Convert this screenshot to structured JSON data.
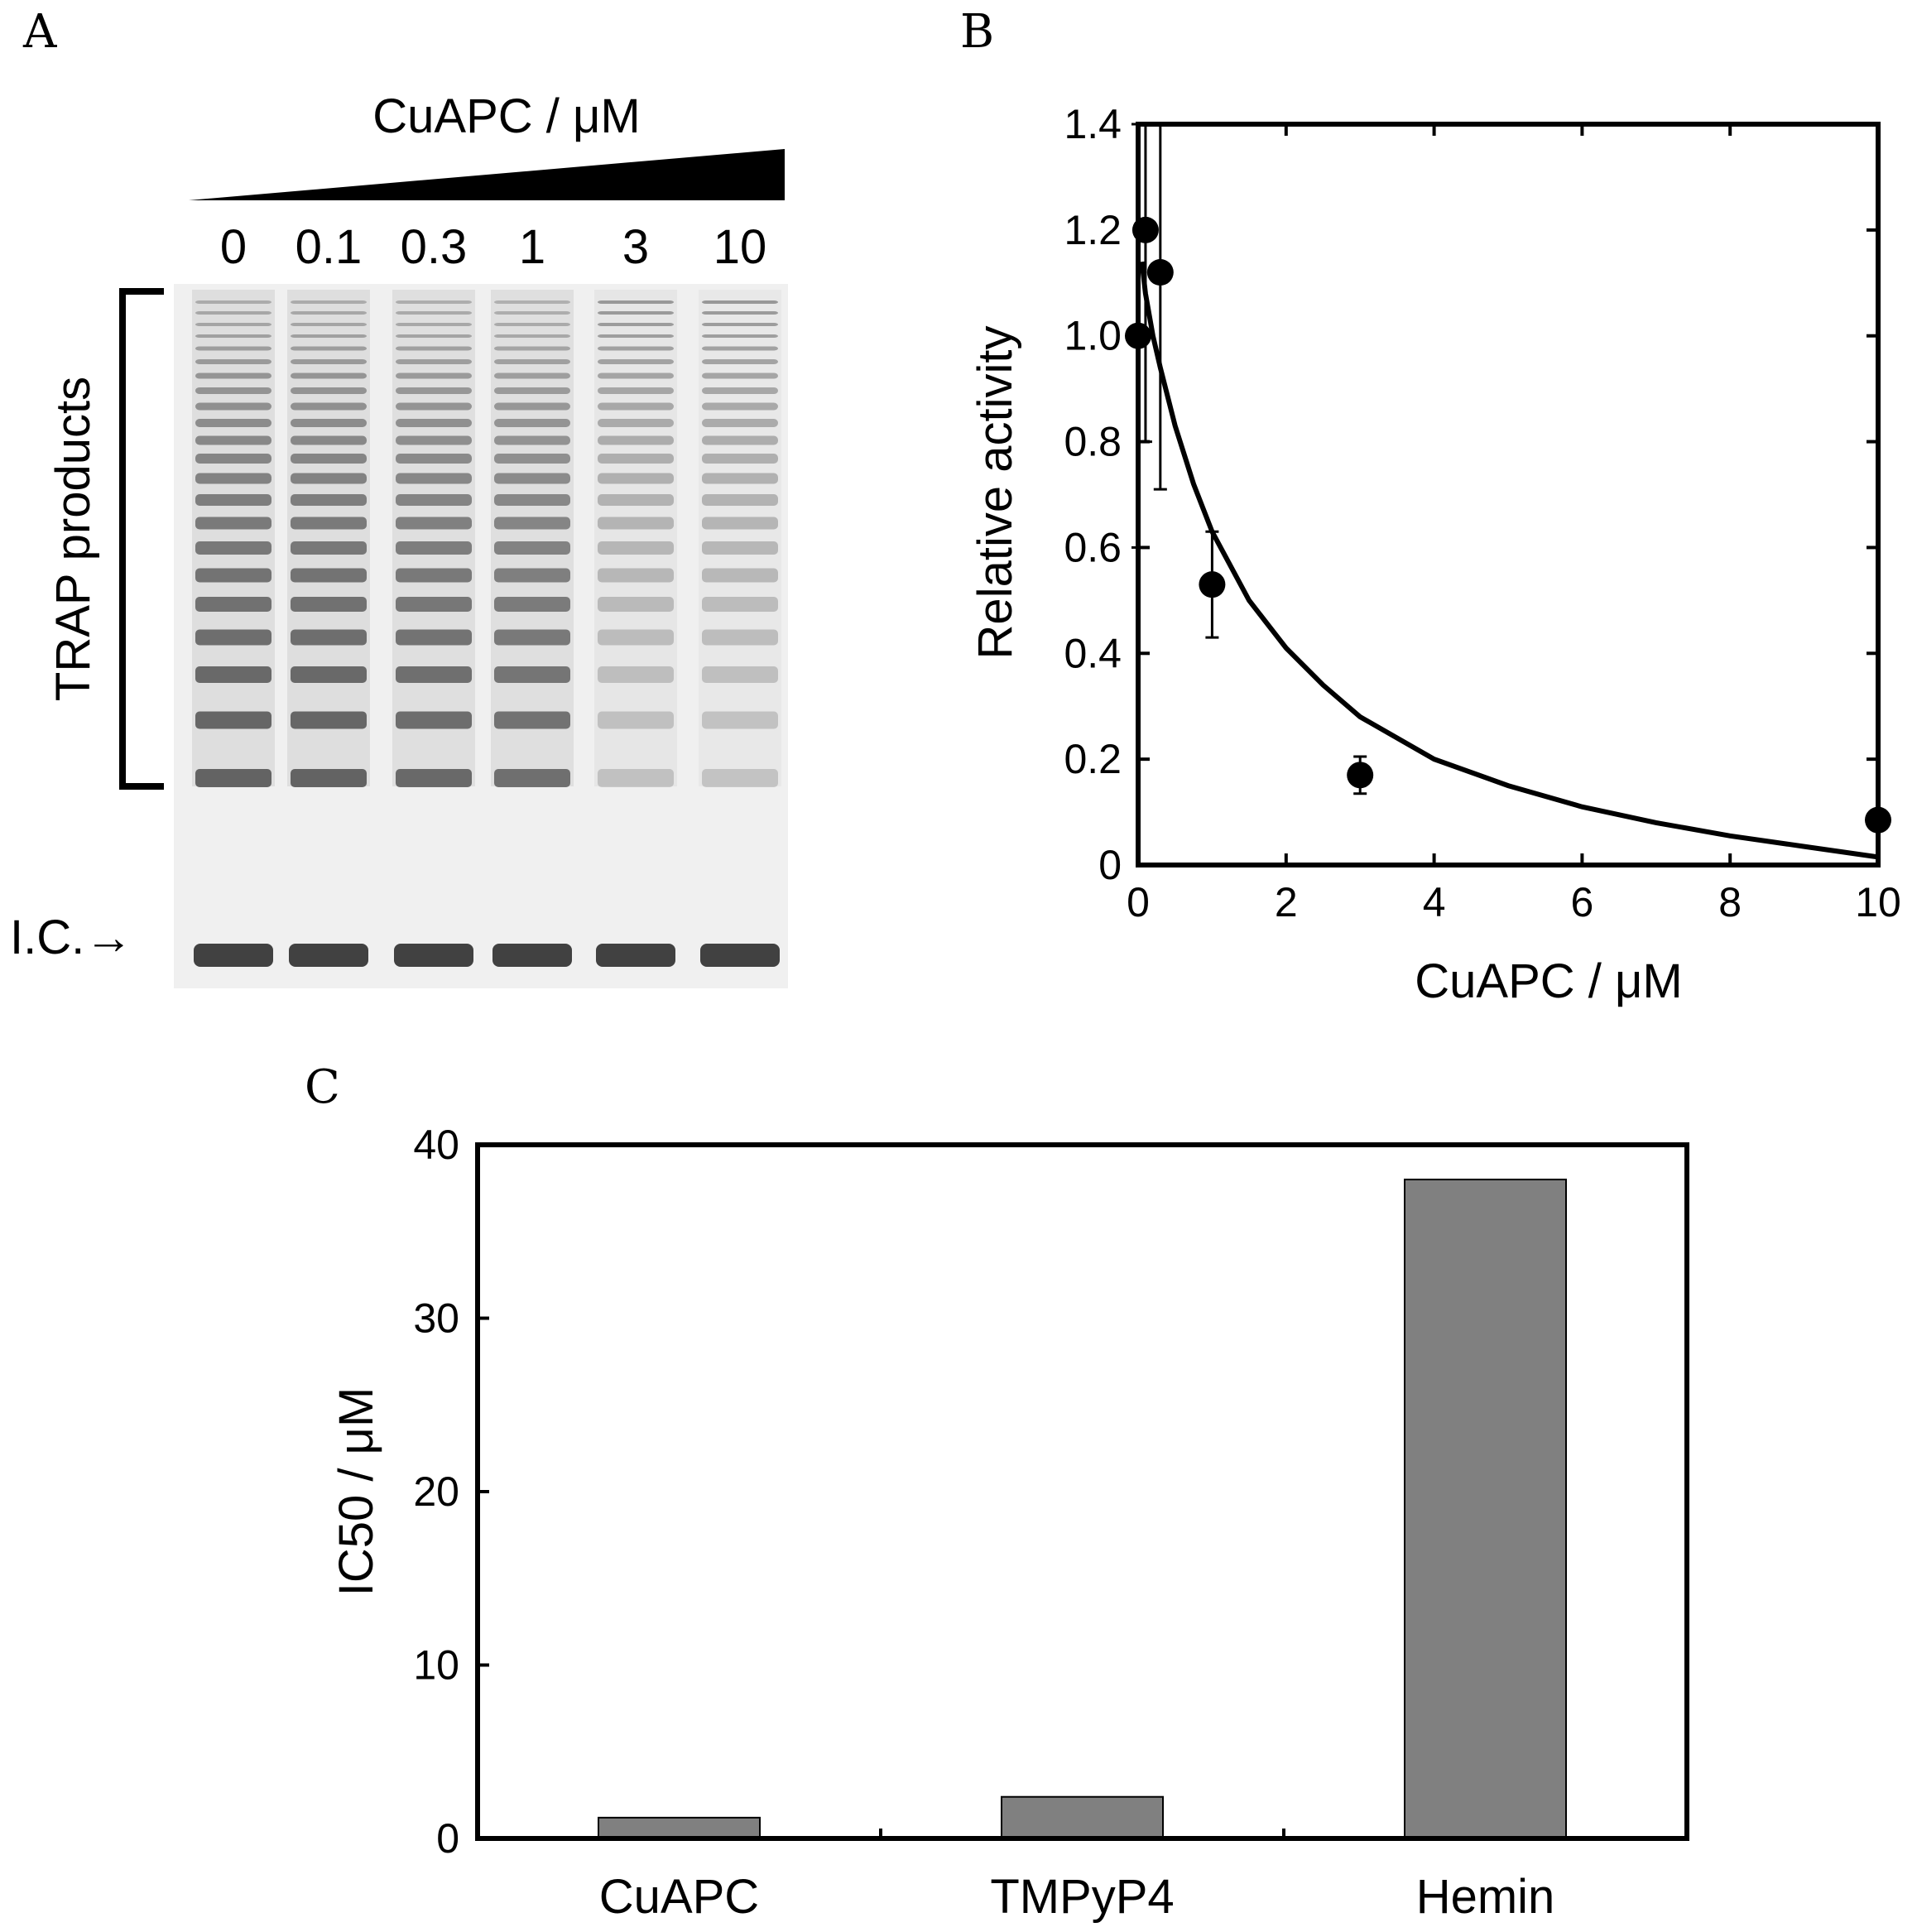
{
  "panels": {
    "a": {
      "letter": "A",
      "gradient_label": "CuAPC / μM",
      "lanes": [
        "0",
        "0.1",
        "0.3",
        "1",
        "3",
        "10"
      ],
      "bracket_label": "TRAP products",
      "ic_label": "I.C.→"
    },
    "b": {
      "letter": "B"
    },
    "c": {
      "letter": "C"
    }
  },
  "chart_data": [
    {
      "id": "B",
      "type": "scatter",
      "xlabel": "CuAPC / μM",
      "ylabel": "Relative activity",
      "xlim": [
        0,
        10
      ],
      "ylim": [
        0,
        1.4
      ],
      "xticks": [
        0,
        2,
        4,
        6,
        8,
        10
      ],
      "yticks": [
        0,
        0.2,
        0.4,
        0.6,
        0.8,
        1.0,
        1.2,
        1.4
      ],
      "ytick_labels": [
        "0",
        "0.2",
        "0.4",
        "0.6",
        "0.8",
        "1.0",
        "1.2",
        "1.4"
      ],
      "grid": false,
      "series": [
        {
          "points": [
            {
              "x": 0,
              "y": 1.0,
              "err": 0.4
            },
            {
              "x": 0.1,
              "y": 1.2,
              "err": 0.4
            },
            {
              "x": 0.3,
              "y": 1.12,
              "err": 0.41
            },
            {
              "x": 1,
              "y": 0.53,
              "err": 0.1
            },
            {
              "x": 3,
              "y": 0.17,
              "err": 0.035
            },
            {
              "x": 10,
              "y": 0.085,
              "err": 0.01
            }
          ]
        }
      ],
      "fit_curve": {
        "x": [
          0.05,
          0.1,
          0.2,
          0.3,
          0.5,
          0.75,
          1,
          1.5,
          2,
          2.5,
          3,
          4,
          5,
          6,
          7,
          8,
          9,
          10
        ],
        "y": [
          1.14,
          1.08,
          1.0,
          0.94,
          0.83,
          0.72,
          0.63,
          0.5,
          0.41,
          0.34,
          0.28,
          0.2,
          0.15,
          0.11,
          0.08,
          0.055,
          0.035,
          0.015
        ]
      }
    },
    {
      "id": "C",
      "type": "bar",
      "categories": [
        "CuAPC",
        "TMPyP4",
        "Hemin"
      ],
      "values": [
        1.2,
        2.4,
        38
      ],
      "ylabel": "IC50 / μM",
      "ylim": [
        0,
        40
      ],
      "yticks": [
        0,
        10,
        20,
        30,
        40
      ],
      "bar_color": "#808080",
      "grid": false
    }
  ]
}
